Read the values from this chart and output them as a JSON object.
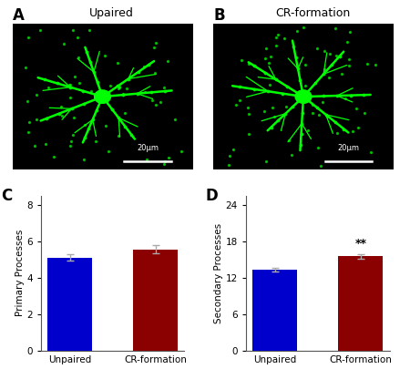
{
  "panel_C": {
    "categories": [
      "Unpaired",
      "CR-formation"
    ],
    "values": [
      5.1,
      5.55
    ],
    "errors": [
      0.18,
      0.22
    ],
    "colors": [
      "#0000CC",
      "#8B0000"
    ],
    "ylabel": "Primary Processes",
    "yticks": [
      0,
      2,
      4,
      6,
      8
    ],
    "ylim": [
      0,
      8.5
    ],
    "label": "C",
    "significance": null
  },
  "panel_D": {
    "categories": [
      "Unpaired",
      "CR-formation"
    ],
    "values": [
      13.3,
      15.5
    ],
    "errors": [
      0.25,
      0.4
    ],
    "colors": [
      "#0000CC",
      "#8B0000"
    ],
    "ylabel": "Secondary Processes",
    "yticks": [
      0,
      6,
      12,
      18,
      24
    ],
    "ylim": [
      0,
      25.5
    ],
    "label": "D",
    "significance": "**"
  },
  "fig_bg": "#ffffff",
  "plot_bg": "#ffffff",
  "panel_A_label": "A",
  "panel_B_label": "B",
  "panel_A_title": "Upaired",
  "panel_B_title": "CR-formation",
  "scale_bar_text": "20μm",
  "neuron_color": "#00FF00",
  "image_bg": "#000000",
  "spine_color": "#555555",
  "errorbar_color": "#aaaaaa",
  "sig_color": "#000000"
}
